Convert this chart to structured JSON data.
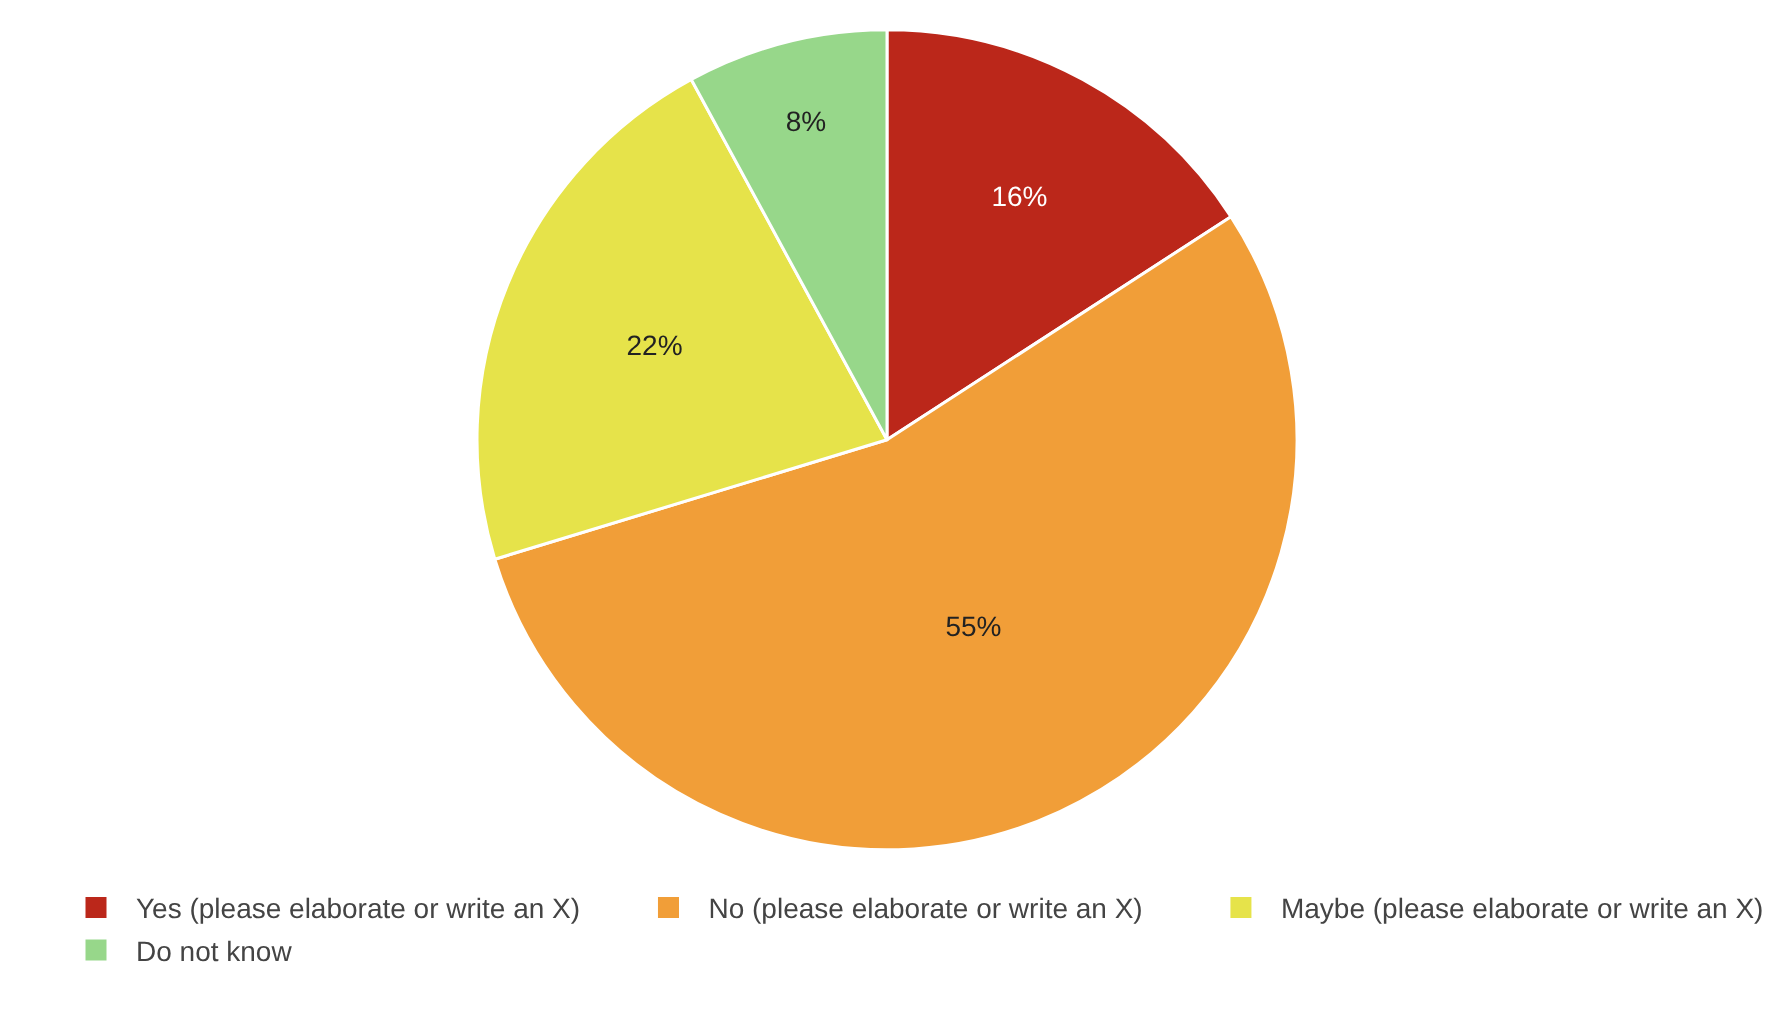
{
  "chart_data": {
    "type": "pie",
    "categories": [
      "Yes (please elaborate or write an X)",
      "No (please elaborate or write an X)",
      "Maybe (please elaborate or write an X)",
      "Do not know"
    ],
    "values": [
      16,
      55,
      22,
      8
    ],
    "value_labels": [
      "16%",
      "55%",
      "22%",
      "8%"
    ],
    "colors": [
      "#bb271a",
      "#f19e38",
      "#e6e34a",
      "#97d78a"
    ],
    "legend": "bottom"
  }
}
